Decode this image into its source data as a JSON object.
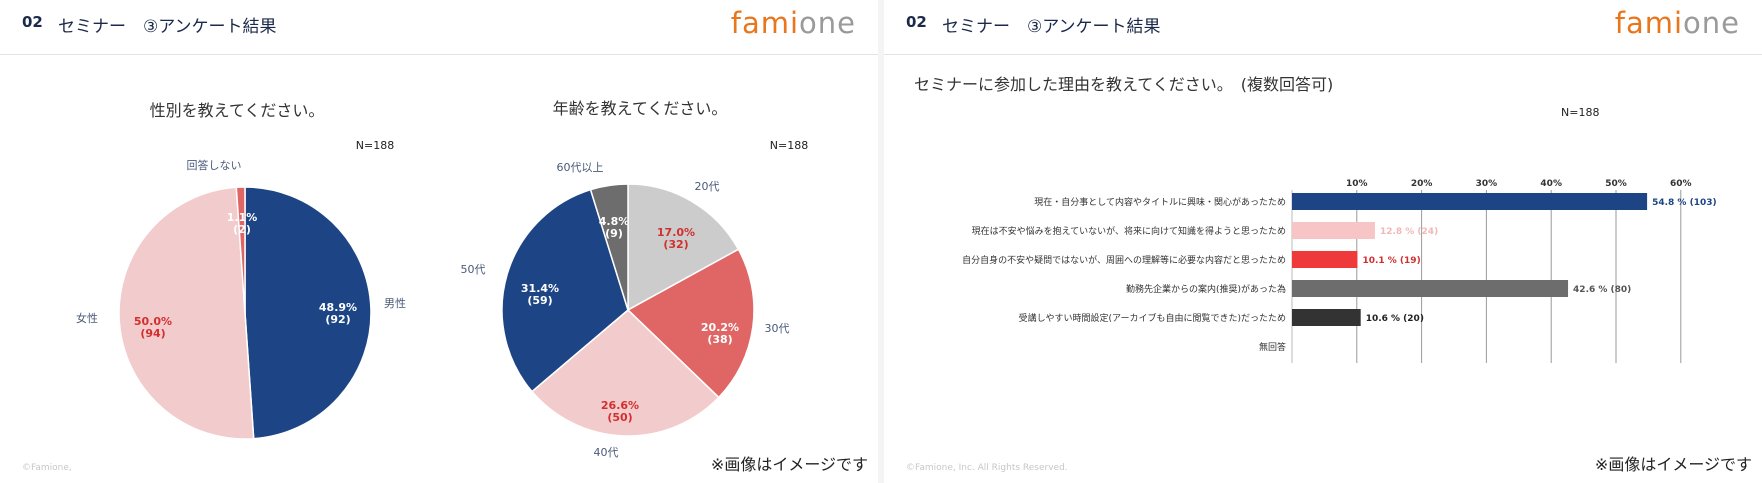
{
  "slide_left": {
    "header_num": "02",
    "header_title": "セミナー　③アンケート結果",
    "logo_left": "fami",
    "logo_right": "one",
    "copyright": "©Famione,",
    "note": "※画像はイメージです"
  },
  "slide_right": {
    "header_num": "02",
    "header_title": "セミナー　③アンケート結果",
    "logo_left": "fami",
    "logo_right": "one",
    "copyright": "©Famione, Inc.  All Rights Reserved.",
    "note": "※画像はイメージです"
  },
  "colors": {
    "navy": "#1d4585",
    "pink": "#f2cccc",
    "red": "#e06666",
    "gray": "#cccccc",
    "darkgray": "#6d6d6d",
    "bright_red": "#ee3a3a",
    "light_pink": "#f7c5c5",
    "black": "#333333",
    "logo_orange": "#e8761c"
  },
  "chart_data": [
    {
      "type": "pie",
      "title": "性別を教えてください。",
      "n_label": "N=188",
      "slices": [
        {
          "label": "男性",
          "percent": 48.9,
          "count": 92,
          "pct_text": "48.9%",
          "count_text": "(92)"
        },
        {
          "label": "女性",
          "percent": 50.0,
          "count": 94,
          "pct_text": "50.0%",
          "count_text": "(94)"
        },
        {
          "label": "回答しない",
          "percent": 1.1,
          "count": 2,
          "pct_text": "1.1%",
          "count_text": "(2)"
        }
      ]
    },
    {
      "type": "pie",
      "title": "年齢を教えてください。",
      "n_label": "N=188",
      "slices": [
        {
          "label": "20代",
          "percent": 17.0,
          "count": 32,
          "pct_text": "17.0%",
          "count_text": "(32)"
        },
        {
          "label": "30代",
          "percent": 20.2,
          "count": 38,
          "pct_text": "20.2%",
          "count_text": "(38)"
        },
        {
          "label": "40代",
          "percent": 26.6,
          "count": 50,
          "pct_text": "26.6%",
          "count_text": "(50)"
        },
        {
          "label": "50代",
          "percent": 31.4,
          "count": 59,
          "pct_text": "31.4%",
          "count_text": "(59)"
        },
        {
          "label": "60代以上",
          "percent": 4.8,
          "count": 9,
          "pct_text": "4.8%",
          "count_text": "(9)"
        }
      ]
    },
    {
      "type": "bar",
      "orientation": "horizontal",
      "title": "セミナーに参加した理由を教えてください。　(複数回答可)",
      "n_label": "N=188",
      "xlim": [
        0,
        60
      ],
      "ticks": [
        "10%",
        "20%",
        "30%",
        "40%",
        "50%",
        "60%"
      ],
      "categories": [
        "現在・自分事として内容やタイトルに興味・関心があったため",
        "現在は不安や悩みを抱えていないが、将来に向けて知識を得ようと思ったため",
        "自分自身の不安や疑問ではないが、周囲への理解等に必要な内容だと思ったため",
        "勤務先企業からの案内(推奨)があった為",
        "受講しやすい時間設定(アーカイブも自由に閲覧できた)だったため",
        "無回答"
      ],
      "values": [
        54.8,
        12.8,
        10.1,
        42.6,
        10.6,
        0
      ],
      "value_labels": [
        "54.8 % (103)",
        "12.8 % (24)",
        "10.1 % (19)",
        "42.6 % (80)",
        "10.6 % (20)",
        ""
      ]
    }
  ]
}
